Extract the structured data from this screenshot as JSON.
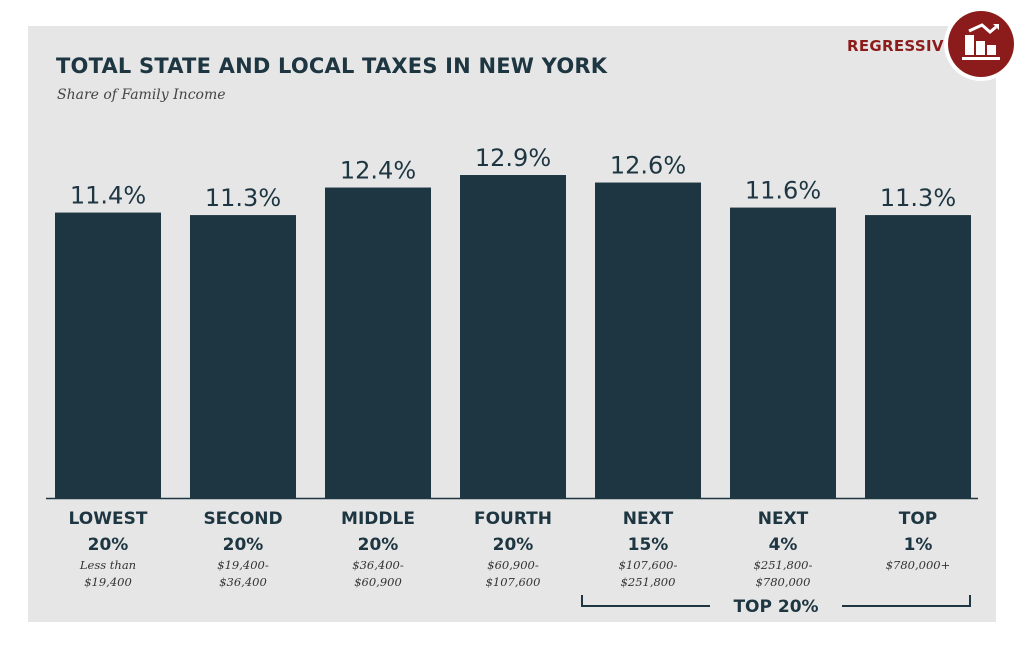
{
  "chart_data": {
    "type": "bar",
    "title": "TOTAL STATE AND LOCAL TAXES IN NEW YORK",
    "subtitle": "Share of Family Income",
    "ylim": [
      0,
      13.5
    ],
    "grid": false,
    "categories": [
      {
        "line1": "LOWEST",
        "line2": "20%",
        "range1": "Less than",
        "range2": "$19,400"
      },
      {
        "line1": "SECOND",
        "line2": "20%",
        "range1": "$19,400-",
        "range2": "$36,400"
      },
      {
        "line1": "MIDDLE",
        "line2": "20%",
        "range1": "$36,400-",
        "range2": "$60,900"
      },
      {
        "line1": "FOURTH",
        "line2": "20%",
        "range1": "$60,900-",
        "range2": "$107,600"
      },
      {
        "line1": "NEXT",
        "line2": "15%",
        "range1": "$107,600-",
        "range2": "$251,800"
      },
      {
        "line1": "NEXT",
        "line2": "4%",
        "range1": "$251,800-",
        "range2": "$780,000"
      },
      {
        "line1": "TOP",
        "line2": "1%",
        "range1": "$780,000+",
        "range2": ""
      }
    ],
    "values": [
      11.4,
      11.3,
      12.4,
      12.9,
      12.6,
      11.6,
      11.3
    ],
    "value_labels": [
      "11.4%",
      "11.3%",
      "12.4%",
      "12.9%",
      "12.6%",
      "11.6%",
      "11.3%"
    ],
    "group_label": "TOP 20%",
    "bar_color": "#1d3641"
  },
  "badge": {
    "label": "REGRESSIVE",
    "icon": "regressive-bar-chart-icon",
    "color": "#8c1c1c"
  }
}
